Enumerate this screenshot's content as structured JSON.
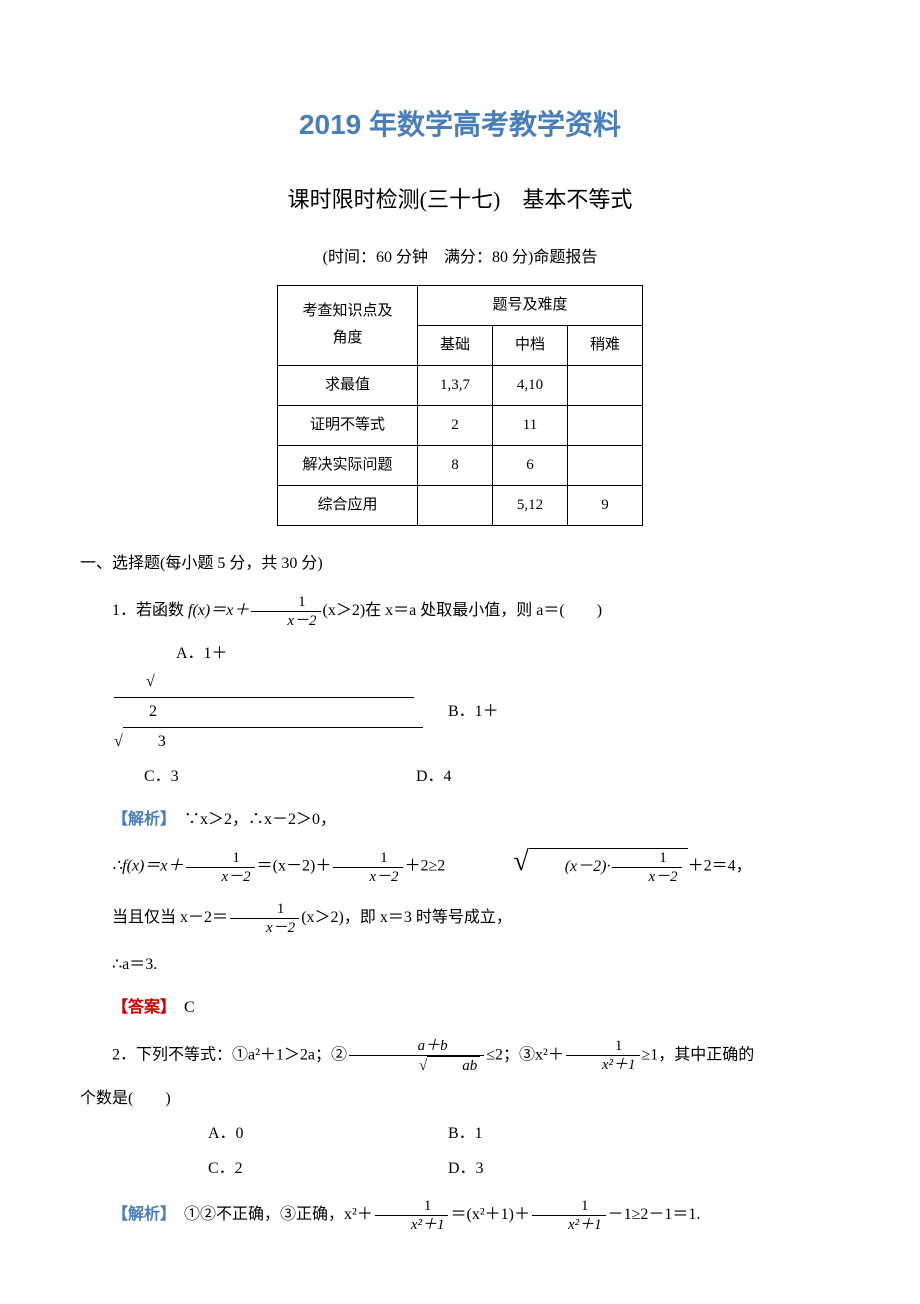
{
  "header": {
    "title1": "2019 年数学高考教学资料",
    "title2": "课时限时检测(三十七)　基本不等式",
    "subtitle": "(时间：60 分钟　满分：80 分)命题报告"
  },
  "table": {
    "columns": [
      "考查知识点及角度",
      "题号及难度"
    ],
    "sub_columns": [
      "基础",
      "中档",
      "稍难"
    ],
    "rows": [
      {
        "topic": "求最值",
        "basic": "1,3,7",
        "mid": "4,10",
        "hard": ""
      },
      {
        "topic": "证明不等式",
        "basic": "2",
        "mid": "11",
        "hard": ""
      },
      {
        "topic": "解决实际问题",
        "basic": "8",
        "mid": "6",
        "hard": ""
      },
      {
        "topic": "综合应用",
        "basic": "",
        "mid": "5,12",
        "hard": "9"
      }
    ],
    "border_color": "#000000",
    "cell_padding": 8
  },
  "section1": {
    "heading": "一、选择题(每小题 5 分，共 30 分)",
    "q1": {
      "prefix": "1．若函数 ",
      "fx": "f(x)＝x＋",
      "frac_num": "1",
      "frac_den": "x－2",
      "suffix1": "(x＞2)在 x＝a 处取最小值，则 a＝(　　)",
      "optA": "A．1＋",
      "sqrtA": "2",
      "optB": "B．1＋",
      "sqrtB": "3",
      "optC": "C．3",
      "optD": "D．4",
      "analysis_label": "【解析】",
      "analysis1": "　∵x＞2，∴x－2＞0，",
      "line2_prefix": "∴f(x)＝x＋",
      "line2_mid1": "＝(x－2)＋",
      "line2_mid2": "＋2≥2",
      "line2_suffix": "＋2＝4，",
      "line3_prefix": "当且仅当 x－2＝",
      "line3_suffix": "(x＞2)，即 x＝3 时等号成立，",
      "line4": "∴a＝3.",
      "answer_label": "【答案】",
      "answer": "　C"
    },
    "q2": {
      "prefix": "2．下列不等式：①a²＋1＞2a；②",
      "frac1_num": "a＋b",
      "frac1_den_sqrt": "ab",
      "mid1": "≤2；③x²＋",
      "frac2_num": "1",
      "frac2_den": "x²＋1",
      "suffix": "≥1，其中正确的",
      "line2": "个数是(　　)",
      "optA": "A．0",
      "optB": "B．1",
      "optC": "C．2",
      "optD": "D．3",
      "analysis_label": "【解析】",
      "analysis_prefix": "　①②不正确，③正确，x²＋",
      "analysis_mid": "＝(x²＋1)＋",
      "analysis_suffix": "－1≥2－1＝1."
    }
  },
  "colors": {
    "title": "#4a7ebb",
    "analysis": "#4a7ebb",
    "answer": "#c00000",
    "text": "#000000",
    "background": "#ffffff"
  }
}
